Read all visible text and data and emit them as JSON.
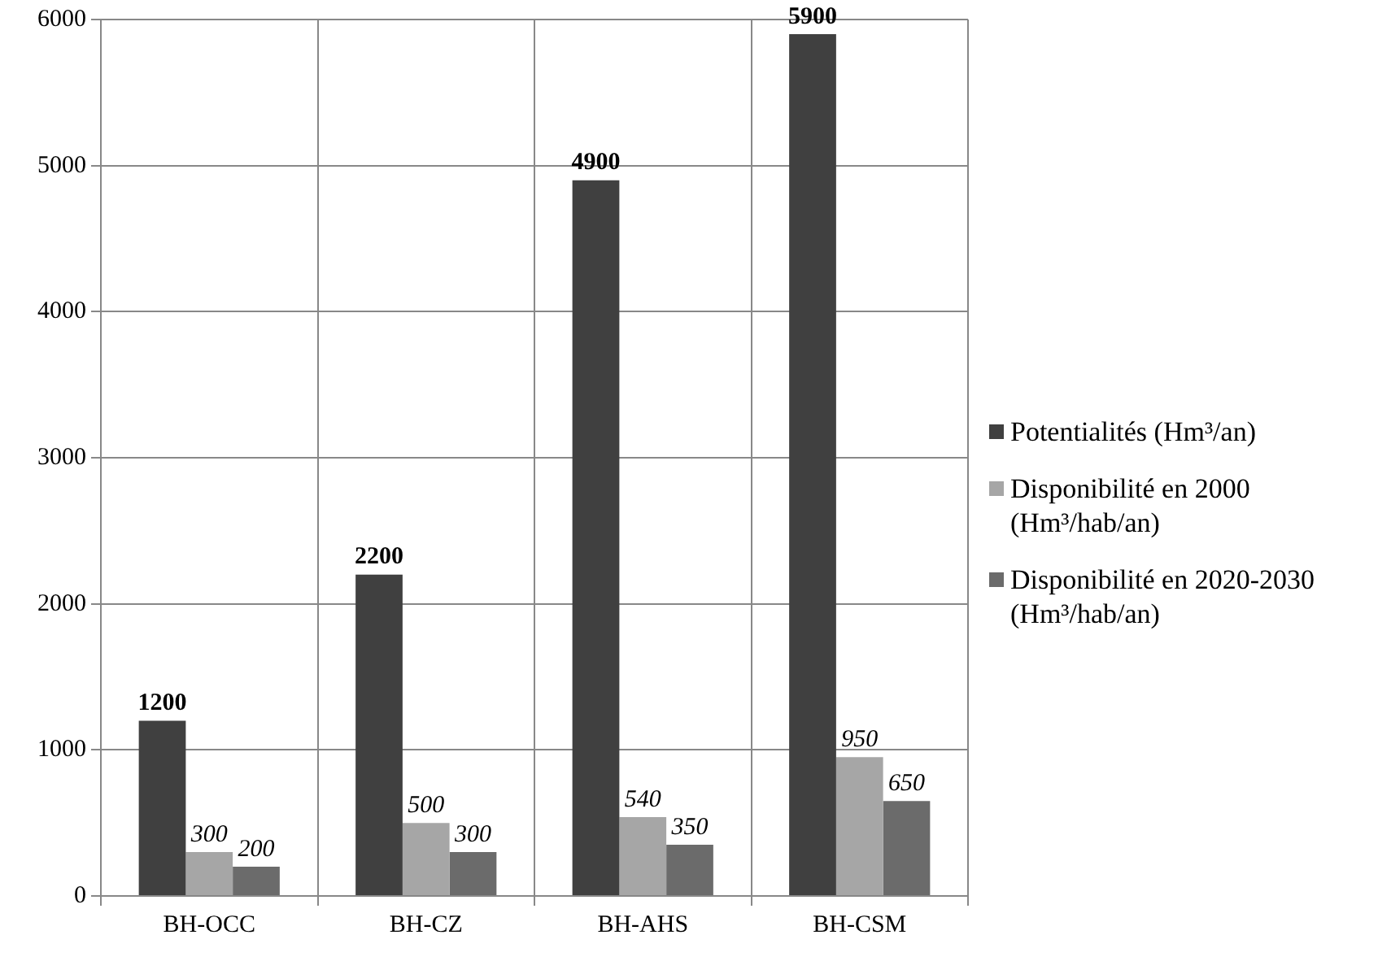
{
  "chart_data": {
    "type": "bar",
    "categories": [
      "BH-OCC",
      "BH-CZ",
      "BH-AHS",
      "BH-CSM"
    ],
    "series": [
      {
        "name": "Potentialités (Hm³/an)",
        "color": "#404040",
        "values": [
          1200,
          2200,
          4900,
          5900
        ]
      },
      {
        "name": "Disponibilité en 2000 (Hm³/hab/an)",
        "color": "#a6a6a6",
        "values": [
          300,
          500,
          540,
          950
        ]
      },
      {
        "name": "Disponibilité en 2020-2030 (Hm³/hab/an)",
        "color": "#6b6b6b",
        "values": [
          200,
          300,
          350,
          650
        ]
      }
    ],
    "ylim": [
      0,
      6000
    ],
    "yticks": [
      0,
      1000,
      2000,
      3000,
      4000,
      5000,
      6000
    ],
    "grid": true,
    "legend": "right",
    "data_labels": true
  }
}
